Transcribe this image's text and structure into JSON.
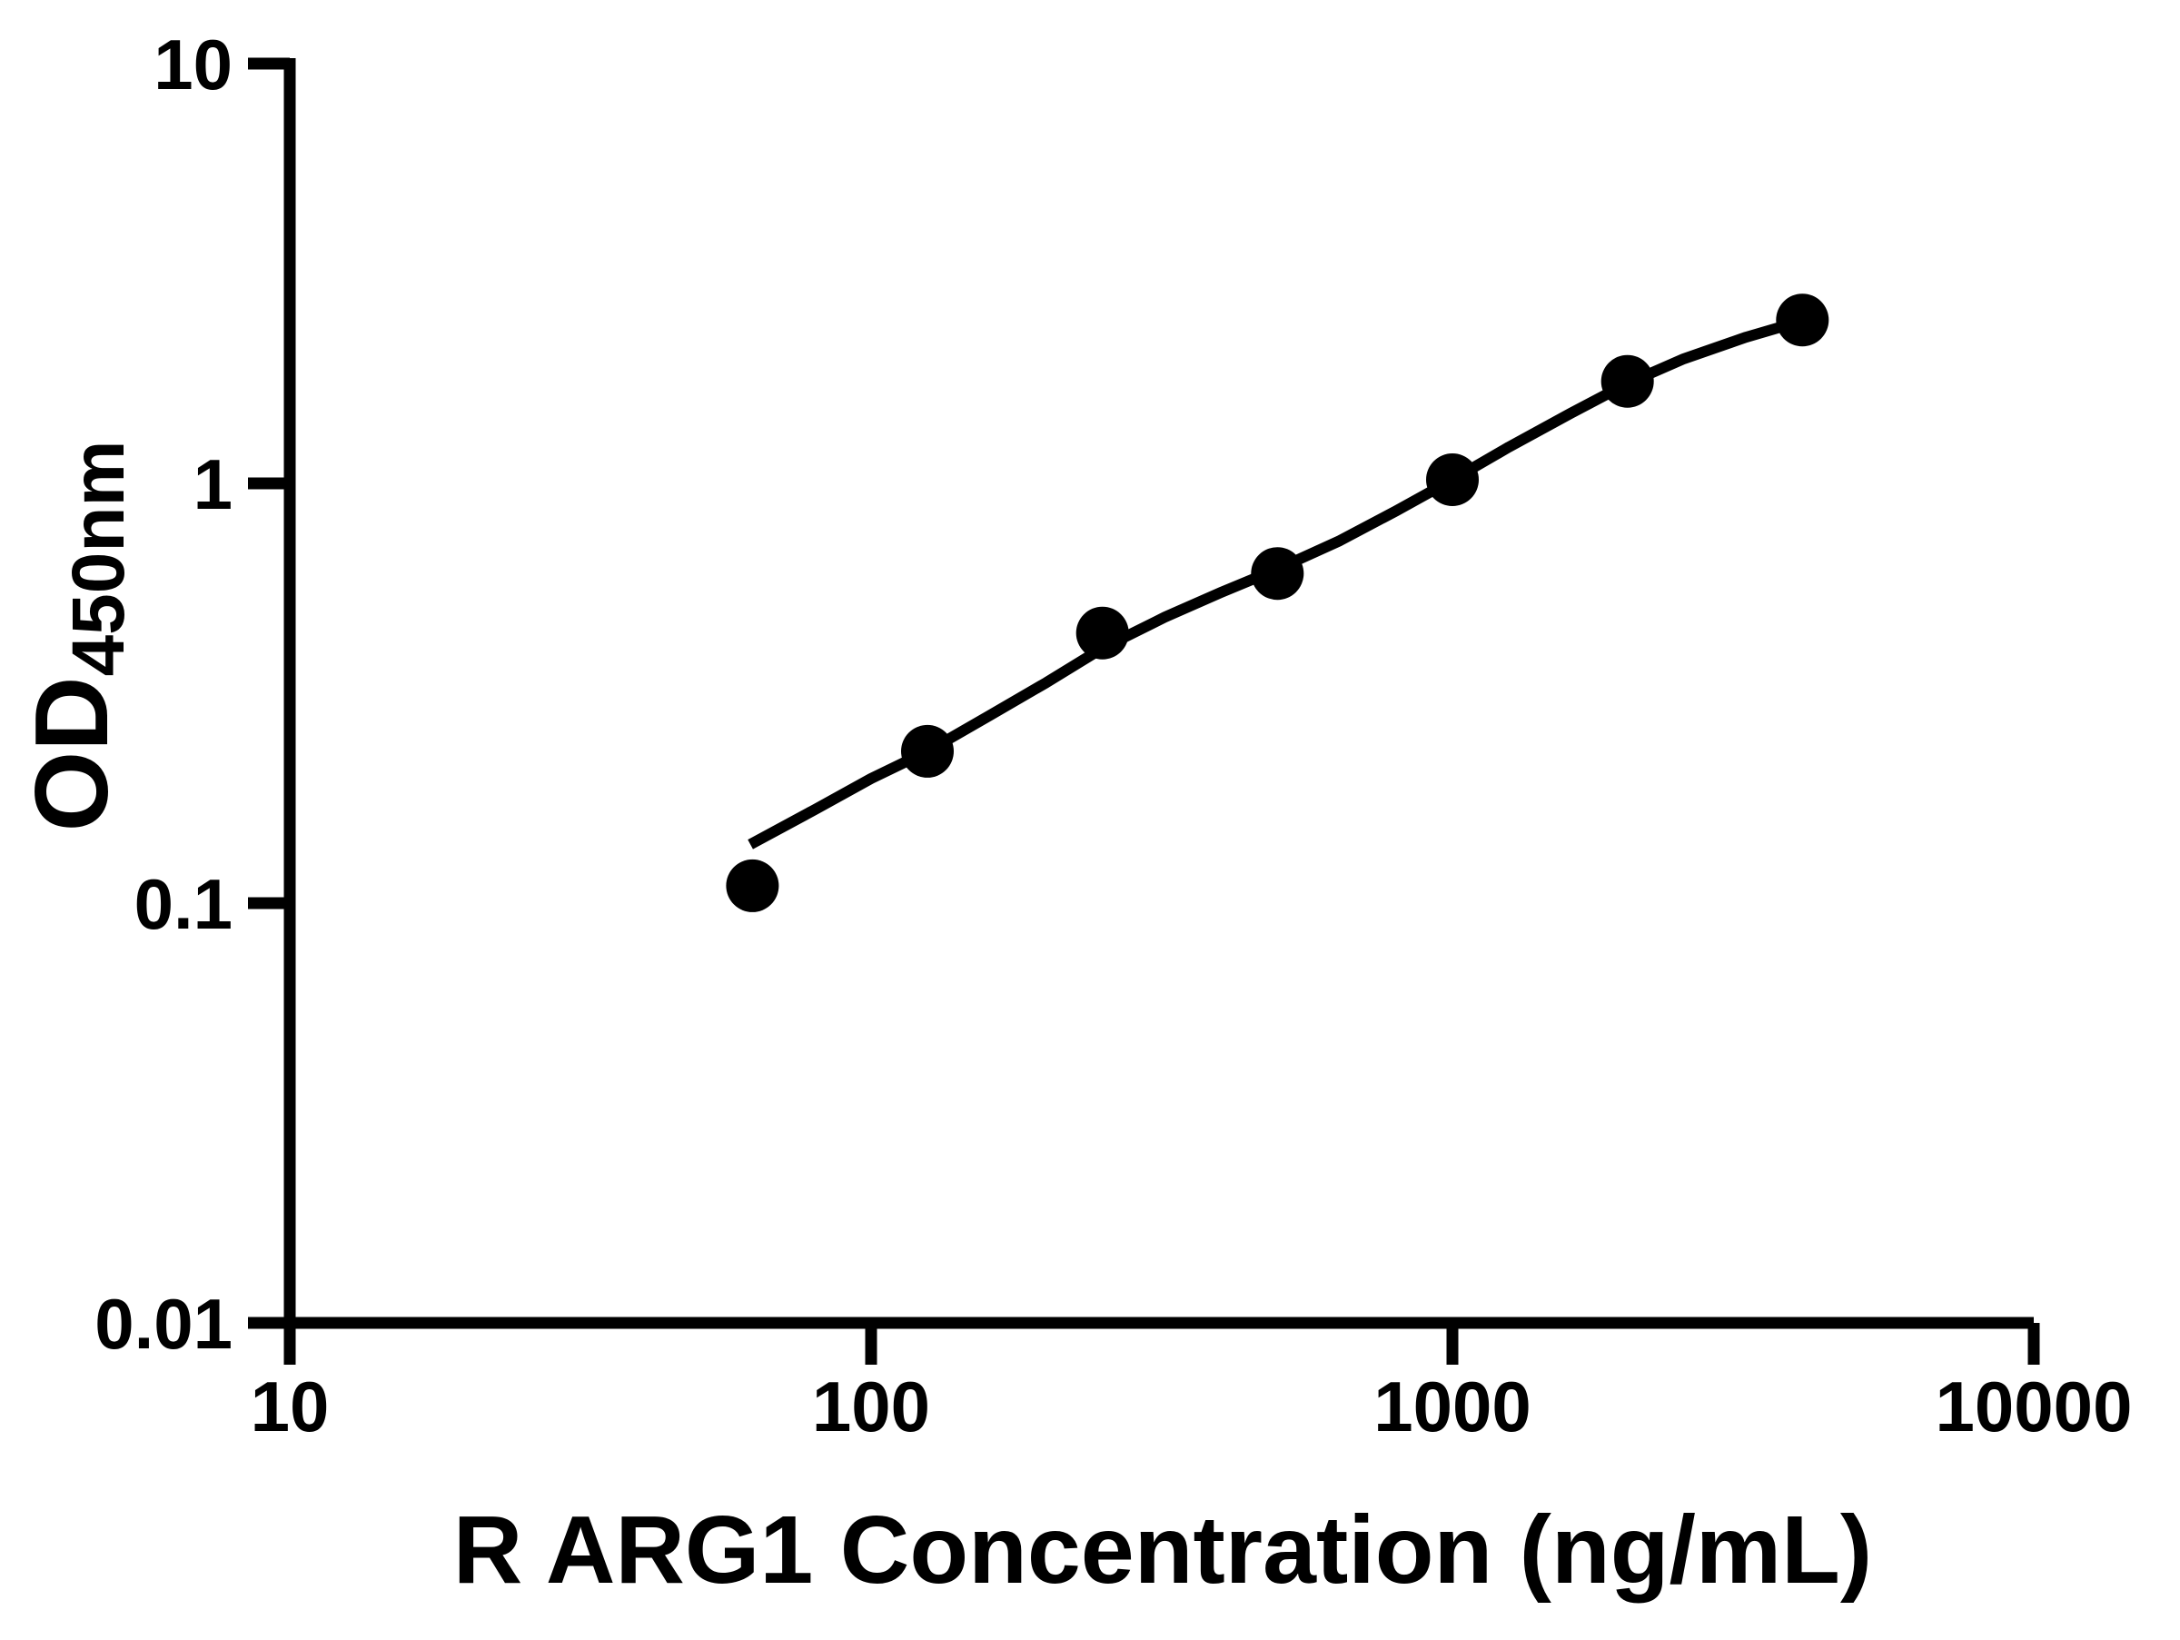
{
  "figure": {
    "background_color": "#ffffff",
    "ink_color": "#000000"
  },
  "chart_data": {
    "type": "scatter",
    "title": "",
    "xlabel": "R ARG1 Concentration (ng/mL)",
    "ylabel_main": "OD",
    "ylabel_sub": "450nm",
    "x_scale": "log",
    "y_scale": "log",
    "xlim": [
      10,
      10000
    ],
    "ylim": [
      0.01,
      10
    ],
    "grid": false,
    "legend_position": "none",
    "x_ticks": [
      {
        "value": 10,
        "label": "10"
      },
      {
        "value": 100,
        "label": "100"
      },
      {
        "value": 1000,
        "label": "1000"
      },
      {
        "value": 10000,
        "label": "10000"
      }
    ],
    "y_ticks": [
      {
        "value": 10,
        "label": "10"
      },
      {
        "value": 1,
        "label": "1"
      },
      {
        "value": 0.1,
        "label": "0.1"
      },
      {
        "value": 0.01,
        "label": "0.01"
      }
    ],
    "series": [
      {
        "name": "standard-points",
        "type": "scatter",
        "marker": "filled-circle",
        "color": "#000000",
        "points": [
          {
            "x": 62.5,
            "y": 0.11
          },
          {
            "x": 125,
            "y": 0.23
          },
          {
            "x": 250,
            "y": 0.44
          },
          {
            "x": 500,
            "y": 0.61
          },
          {
            "x": 1000,
            "y": 1.02
          },
          {
            "x": 2000,
            "y": 1.75
          },
          {
            "x": 4000,
            "y": 2.45
          }
        ]
      },
      {
        "name": "fit-curve",
        "type": "line",
        "color": "#000000",
        "points": [
          {
            "x": 62,
            "y": 0.138
          },
          {
            "x": 80,
            "y": 0.167
          },
          {
            "x": 100,
            "y": 0.198
          },
          {
            "x": 125,
            "y": 0.23
          },
          {
            "x": 160,
            "y": 0.28
          },
          {
            "x": 200,
            "y": 0.335
          },
          {
            "x": 250,
            "y": 0.405
          },
          {
            "x": 320,
            "y": 0.48
          },
          {
            "x": 400,
            "y": 0.55
          },
          {
            "x": 500,
            "y": 0.625
          },
          {
            "x": 640,
            "y": 0.73
          },
          {
            "x": 800,
            "y": 0.86
          },
          {
            "x": 1000,
            "y": 1.02
          },
          {
            "x": 1250,
            "y": 1.22
          },
          {
            "x": 1600,
            "y": 1.47
          },
          {
            "x": 2000,
            "y": 1.73
          },
          {
            "x": 2500,
            "y": 1.98
          },
          {
            "x": 3200,
            "y": 2.23
          },
          {
            "x": 4000,
            "y": 2.44
          }
        ]
      }
    ]
  }
}
